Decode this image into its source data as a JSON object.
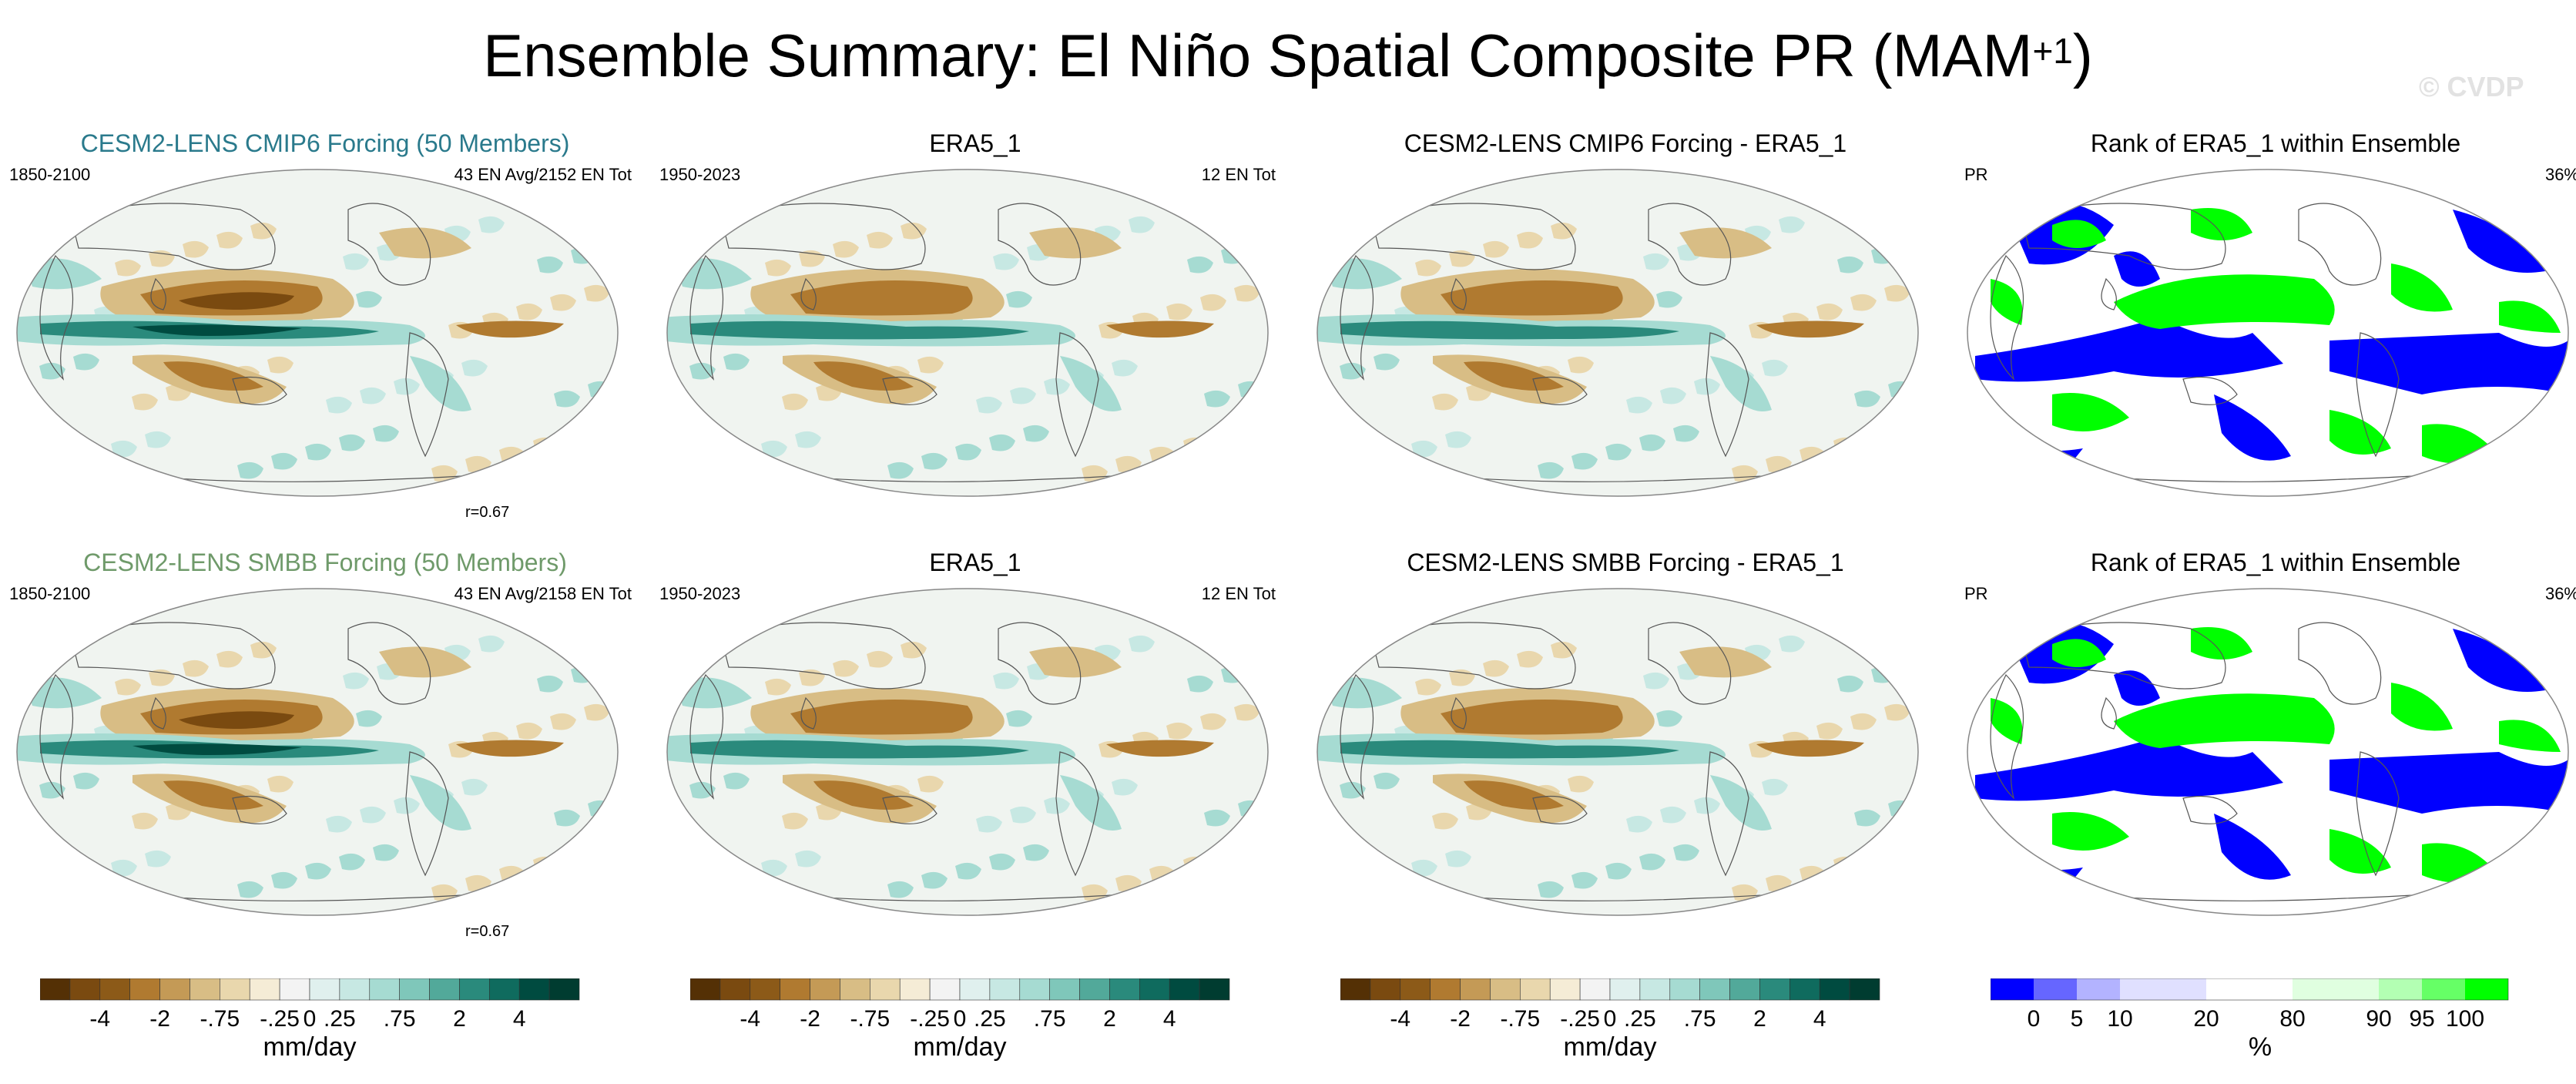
{
  "title": {
    "main": "Ensemble Summary: El Niño Spatial Composite PR (MAM",
    "sup": "+1",
    "close": ")"
  },
  "watermark": "© CVDP",
  "colors": {
    "title_cmip6": "#2a7a8c",
    "title_smbb": "#6f9a6a",
    "brown_teal_scale": [
      "#543005",
      "#7a4a10",
      "#8c5a18",
      "#b07a30",
      "#c49a56",
      "#d8bd85",
      "#e9d7ad",
      "#f5ecd6",
      "#f3f3f3",
      "#e0f0ee",
      "#c7e8e3",
      "#a6dbd2",
      "#7fc7ba",
      "#52a99a",
      "#2a8a7c",
      "#0f6b5e",
      "#004b40",
      "#003c30"
    ],
    "rank_scale": [
      "#0000ff",
      "#6666ff",
      "#b3b3ff",
      "#e0e0ff",
      "#ffffff",
      "#e0ffe0",
      "#b3ffb3",
      "#66ff66",
      "#00ff00"
    ]
  },
  "panels": [
    {
      "title": "CESM2-LENS CMIP6 Forcing (50 Members)",
      "left": "1850-2100",
      "right": "43 EN Avg/2152 EN Tot",
      "corr": "r=0.67",
      "style": "model"
    },
    {
      "title": "ERA5_1",
      "left": "1950-2023",
      "right": "12 EN Tot",
      "corr": "",
      "style": "obs"
    },
    {
      "title": "CESM2-LENS CMIP6 Forcing - ERA5_1",
      "left": "",
      "right": "",
      "corr": "",
      "style": "diff"
    },
    {
      "title": "Rank of ERA5_1 within Ensemble",
      "left": "PR",
      "right": "36%",
      "corr": "",
      "style": "rank"
    },
    {
      "title": "CESM2-LENS SMBB Forcing (50 Members)",
      "left": "1850-2100",
      "right": "43 EN Avg/2158 EN Tot",
      "corr": "r=0.67",
      "style": "model"
    },
    {
      "title": "ERA5_1",
      "left": "1950-2023",
      "right": "12 EN Tot",
      "corr": "",
      "style": "obs"
    },
    {
      "title": "CESM2-LENS SMBB Forcing - ERA5_1",
      "left": "",
      "right": "",
      "corr": "",
      "style": "diff"
    },
    {
      "title": "Rank of ERA5_1 within Ensemble",
      "left": "PR",
      "right": "36%",
      "corr": "",
      "style": "rank"
    }
  ],
  "chart_data": [
    {
      "type": "heatmap",
      "title": "CESM2-LENS CMIP6 Forcing (50 Members)",
      "variable": "PR",
      "season": "MAM+1",
      "units": "mm/day",
      "period": "1850-2100",
      "events": "43 EN Avg/2152 EN Tot",
      "pattern_correlation": 0.67
    },
    {
      "type": "heatmap",
      "title": "ERA5_1",
      "variable": "PR",
      "units": "mm/day",
      "period": "1950-2023",
      "events": "12 EN Tot"
    },
    {
      "type": "heatmap",
      "title": "CESM2-LENS CMIP6 Forcing - ERA5_1",
      "variable": "PR",
      "units": "mm/day"
    },
    {
      "type": "heatmap",
      "title": "Rank of ERA5_1 within Ensemble",
      "variable": "PR",
      "units": "%",
      "percent_outside_10_90": 36
    },
    {
      "type": "heatmap",
      "title": "CESM2-LENS SMBB Forcing (50 Members)",
      "variable": "PR",
      "season": "MAM+1",
      "units": "mm/day",
      "period": "1850-2100",
      "events": "43 EN Avg/2158 EN Tot",
      "pattern_correlation": 0.67
    },
    {
      "type": "heatmap",
      "title": "ERA5_1",
      "variable": "PR",
      "units": "mm/day",
      "period": "1950-2023",
      "events": "12 EN Tot"
    },
    {
      "type": "heatmap",
      "title": "CESM2-LENS SMBB Forcing - ERA5_1",
      "variable": "PR",
      "units": "mm/day"
    },
    {
      "type": "heatmap",
      "title": "Rank of ERA5_1 within Ensemble",
      "variable": "PR",
      "units": "%",
      "percent_outside_10_90": 36
    }
  ],
  "colorbars": {
    "precip": {
      "unit": "mm/day",
      "ticks": [
        "-4",
        "-2",
        "-.75",
        "-.25",
        "0",
        ".25",
        ".75",
        "2",
        "4"
      ],
      "levels": [
        -5,
        -4,
        -3,
        -2,
        -1,
        -0.75,
        -0.5,
        -0.25,
        -0.1,
        0,
        0.1,
        0.25,
        0.5,
        0.75,
        1,
        2,
        3,
        4,
        5
      ]
    },
    "rank": {
      "unit": "%",
      "ticks": [
        "0",
        "5",
        "10",
        "20",
        "80",
        "90",
        "95",
        "100"
      ]
    }
  }
}
